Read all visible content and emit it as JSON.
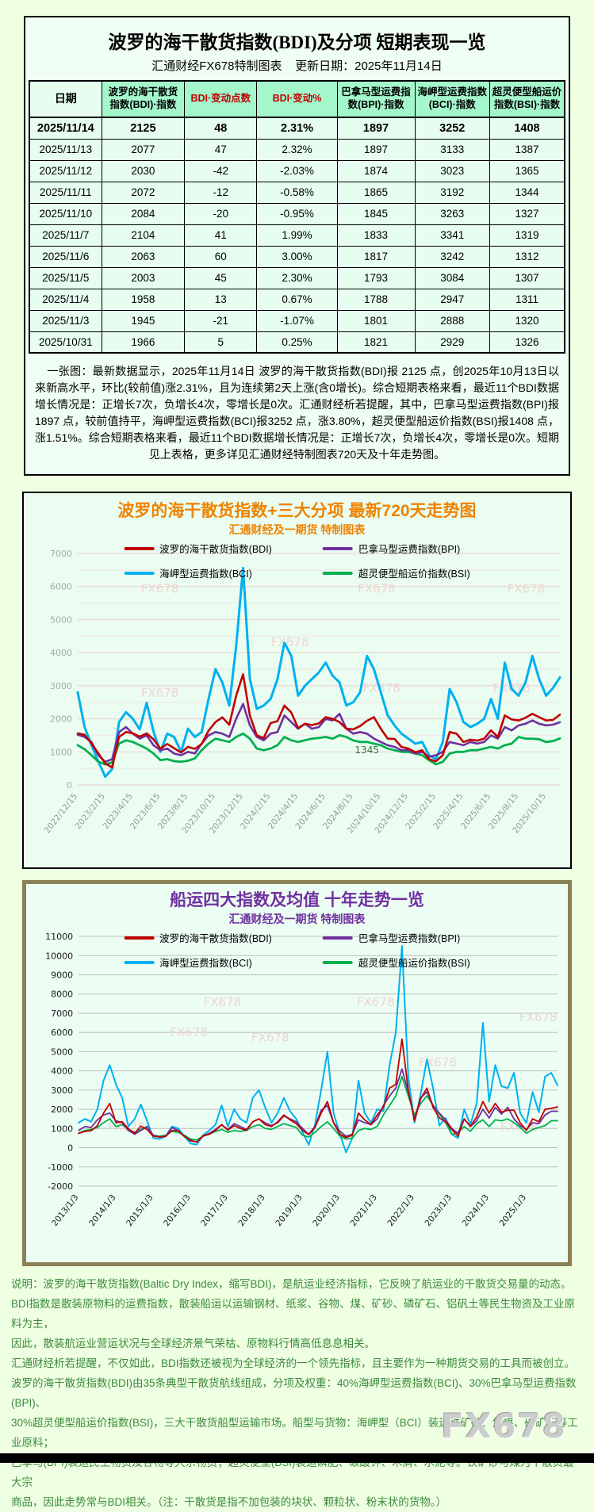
{
  "table": {
    "title": "波罗的海干散货指数(BDI)及分项  短期表现一览",
    "subtitle": "汇通财经FX678特制图表    更新日期：2025年11月14日",
    "headers": [
      {
        "label": "日期",
        "accent": false
      },
      {
        "label": "波罗的海干散货指数(BDI)·指数",
        "accent": false
      },
      {
        "label": "BDI·变动点数",
        "accent": true
      },
      {
        "label": "BDI·变动%",
        "accent": true
      },
      {
        "label": "巴拿马型运费指数(BPI)·指数",
        "accent": false
      },
      {
        "label": "海岬型运费指数(BCI)·指数",
        "accent": false
      },
      {
        "label": "超灵便型船运价指数(BSI)·指数",
        "accent": false
      }
    ],
    "rows": [
      [
        "2025/11/14",
        "2125",
        "48",
        "2.31%",
        "1897",
        "3252",
        "1408"
      ],
      [
        "2025/11/13",
        "2077",
        "47",
        "2.32%",
        "1897",
        "3133",
        "1387"
      ],
      [
        "2025/11/12",
        "2030",
        "-42",
        "-2.03%",
        "1874",
        "3023",
        "1365"
      ],
      [
        "2025/11/11",
        "2072",
        "-12",
        "-0.58%",
        "1865",
        "3192",
        "1344"
      ],
      [
        "2025/11/10",
        "2084",
        "-20",
        "-0.95%",
        "1845",
        "3263",
        "1327"
      ],
      [
        "2025/11/7",
        "2104",
        "41",
        "1.99%",
        "1833",
        "3341",
        "1319"
      ],
      [
        "2025/11/6",
        "2063",
        "60",
        "3.00%",
        "1817",
        "3242",
        "1312"
      ],
      [
        "2025/11/5",
        "2003",
        "45",
        "2.30%",
        "1793",
        "3084",
        "1307"
      ],
      [
        "2025/11/4",
        "1958",
        "13",
        "0.67%",
        "1788",
        "2947",
        "1311"
      ],
      [
        "2025/11/3",
        "1945",
        "-21",
        "-1.07%",
        "1801",
        "2888",
        "1320"
      ],
      [
        "2025/10/31",
        "1966",
        "5",
        "0.25%",
        "1821",
        "2929",
        "1326"
      ]
    ],
    "note": "一张图：最新数据显示，2025年11月14日 波罗的海干散货指数(BDI)报 2125 点，创2025年10月13日以来新高水平，环比(较前值)涨2.31%，且为连续第2天上涨(含0增长)。综合短期表格来看，最近11个BDI数据增长情况是：正增长7次，负增长4次，零增长是0次。汇通财经析若提醒，其中，巴拿马型运费指数(BPI)报1897 点，较前值持平，海岬型运费指数(BCI)报3252 点，涨3.80%，超灵便型船运价指数(BSI)报1408 点，涨1.51%。综合短期表格来看，最近11个BDI数据增长情况是：正增长7次，负增长4次，零增长是0次。短期见上表格，更多详见汇通财经特制图表720天及十年走势图。"
  },
  "chart_data": [
    {
      "type": "line",
      "title": "波罗的海干散货指数+三大分项  最新720天走势图",
      "subtitle": "汇通财经及一期货  特制图表",
      "legend_position": "top-center",
      "grid": true,
      "watermark": "FX678",
      "ylim": [
        0,
        7000
      ],
      "y_tick_step": 1000,
      "y_minor_step": 500,
      "n_points": 71,
      "x_tick_step": 4,
      "x_tick_labels": [
        "2022/12/15",
        "2023/2/15",
        "2023/4/15",
        "2023/6/15",
        "2023/8/15",
        "2023/10/15",
        "2023/12/15",
        "2024/2/15",
        "2024/4/15",
        "2024/6/15",
        "2024/8/15",
        "2024/10/15",
        "2024/12/15",
        "2025/2/15",
        "2025/4/15",
        "2025/6/15",
        "2025/8/15",
        "2025/10/15"
      ],
      "series": [
        {
          "name": "波罗的海干散货指数(BDI)",
          "color": "#c00000",
          "values": [
            1560,
            1515,
            1250,
            950,
            650,
            530,
            1450,
            1600,
            1560,
            1460,
            1558,
            1380,
            1100,
            1240,
            1110,
            980,
            1150,
            1090,
            1240,
            1640,
            1900,
            2046,
            1820,
            2696,
            3346,
            2094,
            1500,
            1420,
            1870,
            1930,
            2400,
            2190,
            1720,
            1850,
            1810,
            1860,
            2050,
            2000,
            1900,
            1700,
            1680,
            1780,
            1940,
            2050,
            1700,
            1400,
            1390,
            1150,
            1100,
            990,
            1050,
            780,
            715,
            900,
            1600,
            1550,
            1300,
            1370,
            1340,
            1400,
            1650,
            1450,
            2100,
            1980,
            1950,
            2030,
            2150,
            2050,
            1950,
            1966,
            2125
          ]
        },
        {
          "name": "巴拿马型运费指数(BPI)",
          "color": "#7030a0",
          "values": [
            1520,
            1450,
            1300,
            900,
            700,
            780,
            1600,
            1750,
            1550,
            1400,
            1500,
            1200,
            1050,
            1100,
            950,
            900,
            1000,
            950,
            1250,
            1500,
            1600,
            1550,
            1450,
            2000,
            2450,
            1800,
            1450,
            1350,
            1550,
            1600,
            2100,
            1900,
            1700,
            1850,
            1700,
            1750,
            2000,
            1950,
            2150,
            1700,
            1550,
            1600,
            1550,
            1400,
            1300,
            1200,
            1150,
            1050,
            1050,
            950,
            1000,
            850,
            900,
            1000,
            1300,
            1250,
            1200,
            1300,
            1250,
            1300,
            1500,
            1400,
            1750,
            1650,
            1800,
            1850,
            1950,
            1850,
            1800,
            1821,
            1897
          ]
        },
        {
          "name": "海岬型运费指数(BCI)",
          "color": "#00b0f0",
          "values": [
            2800,
            1750,
            1200,
            700,
            250,
            480,
            1900,
            2200,
            2000,
            1680,
            2480,
            1620,
            1000,
            1550,
            1450,
            1000,
            1700,
            1450,
            1600,
            2600,
            3500,
            3100,
            2400,
            4200,
            6560,
            3200,
            2300,
            2400,
            2600,
            3200,
            4300,
            3900,
            2700,
            3000,
            3200,
            3400,
            3700,
            3300,
            3100,
            2400,
            2500,
            2800,
            3900,
            3500,
            2800,
            2100,
            1800,
            1550,
            1400,
            1250,
            1300,
            900,
            780,
            1300,
            2900,
            2500,
            1900,
            1750,
            1850,
            2000,
            2600,
            2000,
            3700,
            2900,
            2700,
            3100,
            3900,
            3200,
            2700,
            2929,
            3252
          ]
        },
        {
          "name": "超灵便型船运价指数(BSI)",
          "color": "#00b050",
          "values": [
            1200,
            1080,
            900,
            700,
            620,
            680,
            1250,
            1350,
            1300,
            1200,
            1100,
            950,
            750,
            780,
            720,
            700,
            730,
            800,
            1050,
            1250,
            1400,
            1350,
            1300,
            1450,
            1550,
            1400,
            1100,
            1050,
            1100,
            1200,
            1450,
            1350,
            1300,
            1350,
            1400,
            1420,
            1450,
            1400,
            1500,
            1450,
            1345,
            1300,
            1300,
            1250,
            1200,
            1100,
            1050,
            1000,
            1000,
            950,
            900,
            750,
            620,
            700,
            950,
            1000,
            1000,
            1050,
            1050,
            1100,
            1150,
            1100,
            1200,
            1250,
            1450,
            1400,
            1400,
            1380,
            1300,
            1326,
            1408
          ]
        }
      ],
      "annotations": [
        {
          "text": "1345",
          "series": 3,
          "index": 40
        }
      ]
    },
    {
      "type": "line",
      "title": "船运四大指数及均值 十年走势一览",
      "subtitle": "汇通财经及一期货 特制图表",
      "legend_position": "top-center",
      "grid": true,
      "watermark": "FX678",
      "ylim": [
        -2000,
        11000
      ],
      "y_tick_step": 1000,
      "n_points": 78,
      "x_tick_step": 6,
      "x_tick_labels": [
        "2013/1/3",
        "2014/1/3",
        "2015/1/3",
        "2016/1/3",
        "2017/1/3",
        "2018/1/3",
        "2019/1/3",
        "2020/1/3",
        "2021/1/3",
        "2022/1/3",
        "2023/1/3",
        "2024/1/3",
        "2025/1/3"
      ],
      "series": [
        {
          "name": "波罗的海干散货指数(BDI)",
          "color": "#c00000",
          "values": [
            750,
            850,
            880,
            1150,
            1800,
            2300,
            1300,
            1350,
            980,
            750,
            1120,
            950,
            600,
            560,
            590,
            900,
            890,
            580,
            390,
            290,
            620,
            700,
            900,
            1200,
            910,
            1150,
            1000,
            900,
            1350,
            1500,
            1200,
            1100,
            1350,
            1700,
            1450,
            1250,
            900,
            680,
            1050,
            1800,
            2400,
            1300,
            700,
            530,
            650,
            1800,
            1450,
            1200,
            1700,
            2100,
            3100,
            3300,
            5650,
            3000,
            1400,
            2550,
            3100,
            2100,
            1550,
            1350,
            950,
            600,
            1500,
            1100,
            1600,
            2400,
            1800,
            2300,
            1850,
            1950,
            1950,
            1300,
            900,
            1500,
            1350,
            2000,
            2050,
            2125
          ]
        },
        {
          "name": "巴拿马型运费指数(BPI)",
          "color": "#7030a0",
          "values": [
            900,
            1100,
            1050,
            1450,
            1700,
            1800,
            1400,
            1300,
            900,
            700,
            900,
            1100,
            650,
            550,
            600,
            1050,
            900,
            600,
            350,
            300,
            600,
            750,
            950,
            1200,
            950,
            1250,
            1100,
            950,
            1350,
            1500,
            1300,
            1150,
            1300,
            1650,
            1500,
            1350,
            1000,
            700,
            1100,
            1950,
            2200,
            1300,
            850,
            600,
            700,
            1450,
            1300,
            1200,
            1500,
            2200,
            2700,
            3100,
            4100,
            2900,
            1500,
            2600,
            2900,
            2200,
            1800,
            1450,
            1000,
            750,
            1500,
            1100,
            1400,
            2000,
            1550,
            2100,
            1750,
            2100,
            1500,
            1150,
            950,
            1300,
            1250,
            1700,
            1900,
            1897
          ]
        },
        {
          "name": "海岬型运费指数(BCI)",
          "color": "#00b0f0",
          "values": [
            1300,
            1500,
            1350,
            2000,
            3500,
            4300,
            3300,
            2600,
            1100,
            1500,
            2250,
            1400,
            500,
            450,
            600,
            1100,
            1000,
            600,
            220,
            161,
            650,
            900,
            1200,
            2200,
            1100,
            2000,
            1500,
            1300,
            2600,
            3000,
            2100,
            1300,
            1800,
            2600,
            1900,
            1500,
            800,
            150,
            1200,
            3000,
            5000,
            1800,
            700,
            -250,
            500,
            3500,
            1800,
            1300,
            2000,
            1900,
            4300,
            6000,
            10500,
            3700,
            1300,
            2800,
            4600,
            3100,
            1150,
            1550,
            700,
            500,
            2000,
            1200,
            2300,
            6500,
            2400,
            4300,
            3200,
            3100,
            3900,
            1800,
            1300,
            2900,
            1850,
            3700,
            3900,
            3252
          ]
        },
        {
          "name": "超灵便型船运价指数(BSI)",
          "color": "#00b050",
          "values": [
            750,
            900,
            950,
            1050,
            1300,
            1500,
            1100,
            1200,
            950,
            800,
            950,
            1100,
            650,
            600,
            650,
            850,
            800,
            650,
            450,
            400,
            600,
            700,
            850,
            950,
            800,
            900,
            850,
            900,
            1100,
            1200,
            1000,
            950,
            1100,
            1250,
            1150,
            1050,
            650,
            550,
            800,
            1100,
            1350,
            1000,
            600,
            450,
            500,
            900,
            1000,
            950,
            1100,
            1700,
            2200,
            2700,
            3700,
            2700,
            1700,
            2300,
            2700,
            2200,
            1750,
            1300,
            700,
            780,
            1100,
            850,
            1250,
            1450,
            1100,
            1450,
            1400,
            1500,
            1300,
            1050,
            750,
            950,
            1050,
            1150,
            1400,
            1408
          ]
        }
      ],
      "annotations": []
    }
  ],
  "footer": {
    "lines": [
      "说明：波罗的海干散货指数(Baltic Dry Index，缩写BDI)，是航运业经济指标，它反映了航运业的干散货交易量的动态。",
      "BDI指数是散装原物料的运费指数，散装船运以运输钢材、纸浆、谷物、煤、矿砂、磷矿石、铝矾土等民生物资及工业原料为主，",
      "因此，散装航运业营运状况与全球经济景气荣枯、原物料行情高低息息相关。",
      "汇通财经析若提醒，不仅如此，BDI指数还被视为全球经济的一个领先指标，且主要作为一种期货交易的工具而被创立。",
      "波罗的海干散货指数(BDI)由35条典型干散货航线组成，分项及权重：40%海岬型运费指数(BCI)、30%巴拿马型运费指数(BPI)、",
      "30%超灵便型船运价指数(BSI)，三大干散货船型运输市场。船型与货物：海岬型（BCI）装运铁矿砂、焦煤、磷矿石等工业原料；",
      "巴拿马(BPI)装运民生物资及谷物等大宗物资；超灵便型(BSI)装运磷肥、碳酸钾、木屑、水泥等。铁矿砂与煤为干散货最大宗",
      "商品，因此走势常与BDI相关。（注：干散货是指不加包装的块状、颗粒状、粉末状的货物。）"
    ],
    "watermark": "FX678"
  }
}
